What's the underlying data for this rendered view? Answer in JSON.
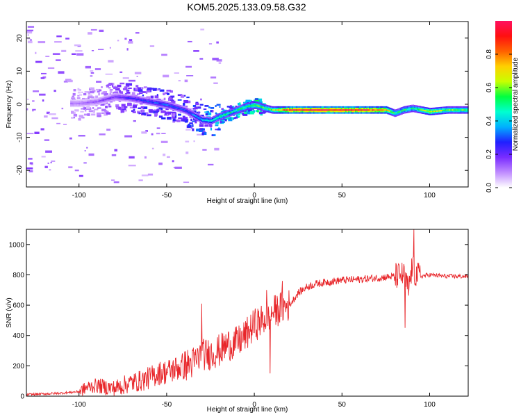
{
  "title": "KOM5.2025.133.09.58.G32",
  "colors": {
    "snr_line": "#e8262a",
    "axis": "#000000",
    "background": "#ffffff"
  },
  "chart_data": [
    {
      "type": "heatmap",
      "title": "KOM5.2025.133.09.58.G32",
      "xlabel": "Height of straight line (km)",
      "ylabel": "Frequency (Hz)",
      "xlim": [
        -130,
        122
      ],
      "ylim": [
        -25,
        25
      ],
      "x_ticks": [
        -100,
        -50,
        0,
        50,
        100
      ],
      "y_ticks": [
        -20,
        -10,
        0,
        10,
        20
      ],
      "colorbar": {
        "label": "Normalized spectral amplitude",
        "range": [
          0,
          1
        ],
        "ticks": [
          0.0,
          0.2,
          0.4,
          0.6,
          0.8
        ],
        "colormap": [
          "#ffffff",
          "#c08cff",
          "#7a2cff",
          "#2020ff",
          "#00b0ff",
          "#00ffd0",
          "#00ff40",
          "#c8ff00",
          "#ffd000",
          "#ff6000",
          "#ff1010",
          "#ff1060"
        ]
      },
      "ridge": {
        "x": [
          -100,
          -90,
          -80,
          -70,
          -60,
          -50,
          -40,
          -30,
          -25,
          -20,
          -10,
          -5,
          0,
          5,
          10,
          20,
          40,
          60,
          75,
          80,
          85,
          90,
          100,
          110,
          122
        ],
        "y": [
          0.5,
          1.0,
          2.5,
          2.0,
          1.0,
          0.0,
          -1.5,
          -4.5,
          -4.8,
          -3.5,
          -1.5,
          -0.5,
          0.0,
          -0.8,
          -1.5,
          -1.5,
          -1.5,
          -1.5,
          -1.5,
          -2.5,
          -1.5,
          -1.0,
          -2.0,
          -1.5,
          -1.5
        ],
        "amplitude": [
          0.12,
          0.15,
          0.2,
          0.25,
          0.3,
          0.32,
          0.3,
          0.4,
          0.45,
          0.5,
          0.5,
          0.55,
          0.6,
          0.55,
          0.6,
          0.95,
          1.0,
          0.95,
          0.8,
          0.5,
          0.55,
          0.5,
          0.7,
          0.6,
          0.55
        ]
      }
    },
    {
      "type": "line",
      "xlabel": "Height of straight line (km)",
      "ylabel": "SNR (v/v)",
      "xlim": [
        -130,
        122
      ],
      "ylim": [
        0,
        1100
      ],
      "x_ticks": [
        -100,
        -50,
        0,
        50,
        100
      ],
      "y_ticks": [
        0,
        200,
        400,
        600,
        800,
        1000
      ],
      "series": [
        {
          "x": [
            -130,
            -120,
            -110,
            -100,
            -95,
            -90,
            -85,
            -80,
            -75,
            -70,
            -65,
            -60,
            -55,
            -50,
            -45,
            -40,
            -35,
            -30,
            -25,
            -20,
            -15,
            -10,
            -5,
            0,
            5,
            10,
            15,
            20,
            25,
            30,
            35,
            40,
            50,
            60,
            70,
            80,
            85,
            88,
            90,
            92,
            95,
            100,
            110,
            122
          ],
          "values": [
            10,
            15,
            20,
            30,
            60,
            70,
            60,
            50,
            70,
            90,
            100,
            120,
            150,
            160,
            180,
            200,
            220,
            270,
            280,
            300,
            340,
            350,
            400,
            470,
            500,
            550,
            580,
            600,
            680,
            720,
            740,
            750,
            765,
            770,
            780,
            790,
            800,
            700,
            850,
            800,
            790,
            800,
            790,
            790
          ]
        }
      ],
      "spikes": [
        {
          "x": -30,
          "y": 610
        },
        {
          "x": 7,
          "y": 700
        },
        {
          "x": 9,
          "y": 150
        },
        {
          "x": 16,
          "y": 760
        },
        {
          "x": 86,
          "y": 450
        },
        {
          "x": 91,
          "y": 1110
        }
      ]
    }
  ]
}
